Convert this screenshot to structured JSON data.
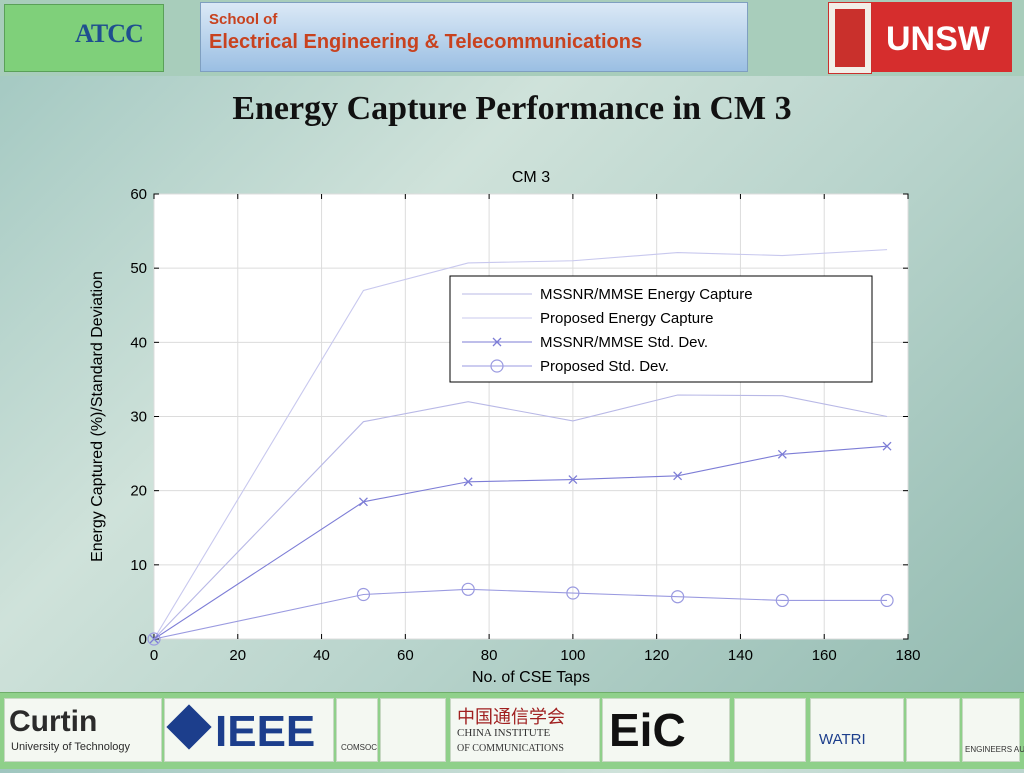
{
  "header": {
    "atcc_logo": "ATCC",
    "school_line1": "School of",
    "school_line2": "Electrical Engineering & Telecommunications",
    "unsw_logo": "UNSW"
  },
  "slide_title": "Energy Capture Performance in CM 3",
  "chart_data": {
    "type": "line",
    "title": "CM 3",
    "xlabel": "No. of CSE Taps",
    "ylabel": "Energy Captured (%)/Standard Deviation",
    "xlim": [
      0,
      180
    ],
    "ylim": [
      0,
      60
    ],
    "xticks": [
      0,
      20,
      40,
      60,
      80,
      100,
      120,
      140,
      160,
      180
    ],
    "yticks": [
      0,
      10,
      20,
      30,
      40,
      50,
      60
    ],
    "grid": true,
    "legend_position": "top-right",
    "series": [
      {
        "name": "MSSNR/MMSE Energy Capture",
        "x": [
          0,
          50,
          75,
          100,
          125,
          150,
          175
        ],
        "y": [
          0,
          29.3,
          32,
          29.4,
          32.9,
          32.8,
          30
        ],
        "marker": "none",
        "color": "#b8b8e6"
      },
      {
        "name": "Proposed Energy Capture",
        "x": [
          0,
          50,
          75,
          100,
          125,
          150,
          175
        ],
        "y": [
          0,
          47,
          50.7,
          51,
          52.1,
          51.7,
          52.5
        ],
        "marker": "none",
        "color": "#c8c8ee"
      },
      {
        "name": "MSSNR/MMSE Std. Dev.",
        "x": [
          0,
          50,
          75,
          100,
          125,
          150,
          175
        ],
        "y": [
          0,
          18.5,
          21.2,
          21.5,
          22,
          24.9,
          26
        ],
        "marker": "x",
        "color": "#7d7dd6"
      },
      {
        "name": "Proposed Std. Dev.",
        "x": [
          0,
          50,
          75,
          100,
          125,
          150,
          175
        ],
        "y": [
          0,
          6,
          6.7,
          6.2,
          5.7,
          5.2,
          5.2
        ],
        "marker": "circle",
        "color": "#9a9ae0"
      }
    ]
  },
  "footer": {
    "curtin_name": "Curtin",
    "curtin_sub": "University of Technology",
    "ieee": "IEEE",
    "comsoc": "COMSOC",
    "cic_cn": "中国通信学会",
    "cic_en1": "CHINA INSTITUTE",
    "cic_en2": "OF COMMUNICATIONS",
    "eic": "EiC",
    "watri": "WATRI",
    "ea": "ENGINEERS AUSTRALIA"
  }
}
